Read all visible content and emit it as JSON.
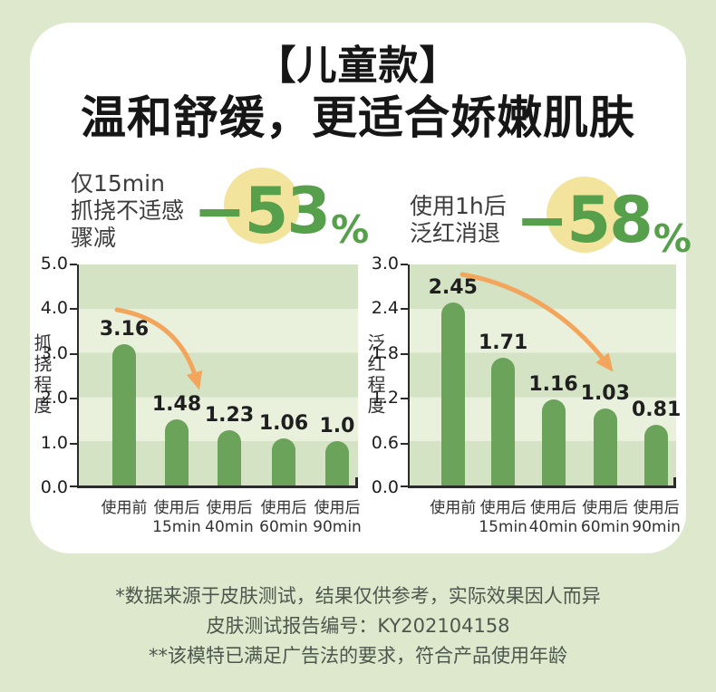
{
  "page": {
    "title_line1": "【儿童款】",
    "title_line2": "温和舒缓，更适合娇嫩肌肤"
  },
  "stats": [
    {
      "lines": [
        "仅15min",
        "抓挠不适感",
        "骤减"
      ],
      "value": "−53",
      "percent": "%"
    },
    {
      "lines": [
        "使用1h后",
        "泛红消退"
      ],
      "value": "−58",
      "percent": "%"
    }
  ],
  "chart_data": [
    {
      "type": "bar",
      "ylabel": "抓挠程度",
      "categories": [
        "使用前",
        "使用后15min",
        "使用后40min",
        "使用后60min",
        "使用后90min"
      ],
      "category_lines": [
        [
          "使用前"
        ],
        [
          "使用后",
          "15min"
        ],
        [
          "使用后",
          "40min"
        ],
        [
          "使用后",
          "60min"
        ],
        [
          "使用后",
          "90min"
        ]
      ],
      "values": [
        3.16,
        1.48,
        1.23,
        1.06,
        1.0
      ],
      "value_labels": [
        "3.16",
        "1.48",
        "1.23",
        "1.06",
        "1.0"
      ],
      "ylim": [
        0,
        5
      ],
      "yticks": [
        "0.0",
        "1.0",
        "2.0",
        "3.0",
        "4.0",
        "5.0"
      ],
      "grid": "horizontal-bands",
      "legend": "none",
      "annotation": "orange-downward-arrow"
    },
    {
      "type": "bar",
      "ylabel": "泛红程度",
      "categories": [
        "使用前",
        "使用后15min",
        "使用后40min",
        "使用后60min",
        "使用后90min"
      ],
      "category_lines": [
        [
          "使用前"
        ],
        [
          "使用后",
          "15min"
        ],
        [
          "使用后",
          "40min"
        ],
        [
          "使用后",
          "60min"
        ],
        [
          "使用后",
          "90min"
        ]
      ],
      "values": [
        2.45,
        1.71,
        1.16,
        1.03,
        0.81
      ],
      "value_labels": [
        "2.45",
        "1.71",
        "1.16",
        "1.03",
        "0.81"
      ],
      "ylim": [
        0,
        3
      ],
      "yticks": [
        "0.0",
        "0.6",
        "1.2",
        "1.8",
        "2.4",
        "3.0"
      ],
      "grid": "horizontal-bands",
      "legend": "none",
      "annotation": "orange-downward-arrow"
    }
  ],
  "footer": {
    "lines": [
      "*数据来源于皮肤测试，结果仅供参考，实际效果因人而异",
      "皮肤测试报告编号：KY202104158",
      "**该模特已满足广告法的要求，符合产品使用年龄"
    ]
  },
  "colors": {
    "background": "#dde8cd",
    "card": "#ffffff",
    "accent_green": "#57a04b",
    "bar_green": "#6ba35b",
    "band_dark": "#d4e3c4",
    "band_light": "#e9f1dd",
    "circle_yellow": "#f2e39d",
    "arrow_orange": "#f2a55b",
    "footer_text": "#4d574d"
  }
}
